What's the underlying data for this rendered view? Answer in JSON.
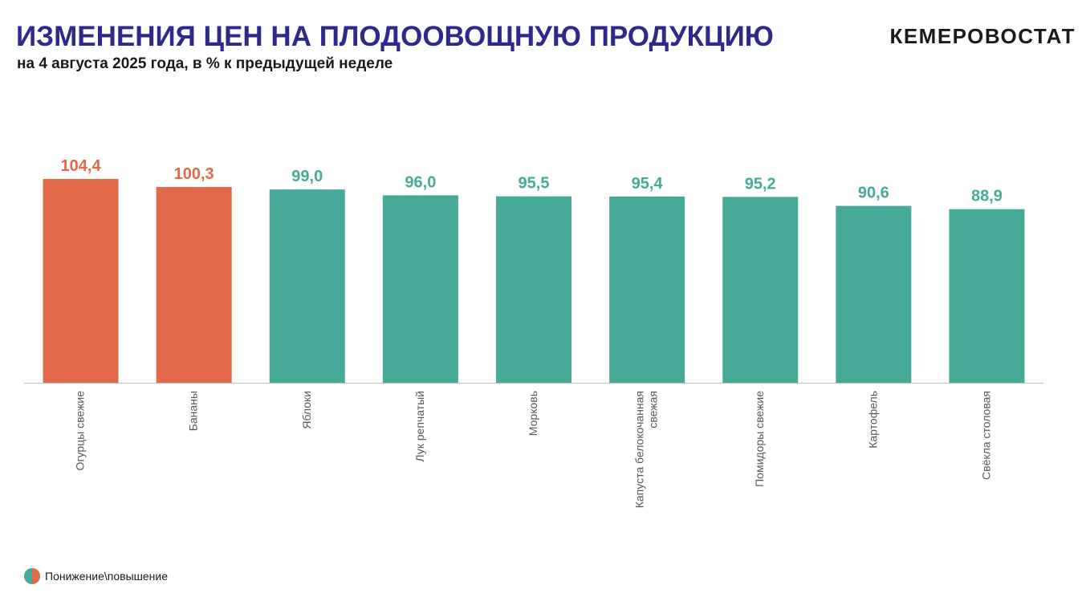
{
  "header": {
    "title": "ИЗМЕНЕНИЯ ЦЕН НА ПЛОДООВОЩНУЮ ПРОДУКЦИЮ",
    "subtitle": "на 4 августа 2025 года, в % к предыдущей неделе",
    "brand": "КЕМЕРОВОСТАТ"
  },
  "colors": {
    "title": "#2e2a8c",
    "increase": "#e4694a",
    "decrease": "#47aa98",
    "axis": "#bfbfbf",
    "tick_label": "#595959"
  },
  "legend": {
    "label": "Понижение\\повышение"
  },
  "chart_data": {
    "type": "bar",
    "categories": [
      "Огурцы свежие",
      "Бананы",
      "Яблоки",
      "Лук репчатый",
      "Морковь",
      "Капуста белокочанная свежая",
      "Помидоры свежие",
      "Картофель",
      "Свёкла столовая"
    ],
    "category_lines": [
      [
        "Огурцы свежие"
      ],
      [
        "Бананы"
      ],
      [
        "Яблоки"
      ],
      [
        "Лук репчатый"
      ],
      [
        "Морковь"
      ],
      [
        "Капуста белокочанная",
        "свежая"
      ],
      [
        "Помидоры свежие"
      ],
      [
        "Картофель"
      ],
      [
        "Свёкла столовая"
      ]
    ],
    "values": [
      104.4,
      100.3,
      99.0,
      96.0,
      95.5,
      95.4,
      95.2,
      90.6,
      88.9
    ],
    "value_labels": [
      "104,4",
      "100,3",
      "99,0",
      "96,0",
      "95,5",
      "95,4",
      "95,2",
      "90,6",
      "88,9"
    ],
    "bar_status": [
      "increase",
      "increase",
      "decrease",
      "decrease",
      "decrease",
      "decrease",
      "decrease",
      "decrease",
      "decrease"
    ],
    "xlabel": "",
    "ylabel": "",
    "ylim": [
      0,
      104.4
    ],
    "grid": false,
    "legend_position": "bottom-left"
  }
}
